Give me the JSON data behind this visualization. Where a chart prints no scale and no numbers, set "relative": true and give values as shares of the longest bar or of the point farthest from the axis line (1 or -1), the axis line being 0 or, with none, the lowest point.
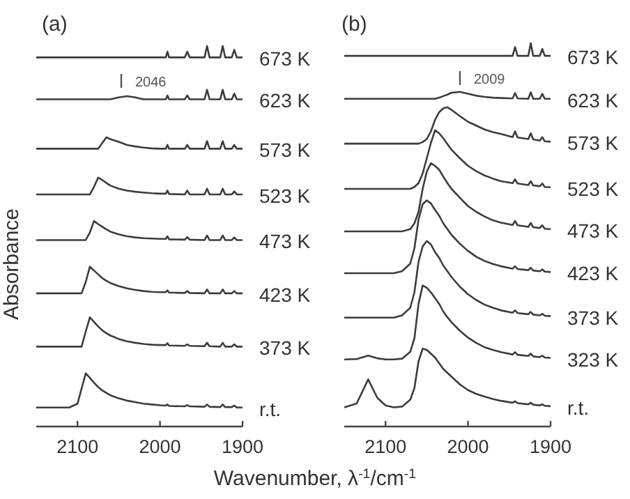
{
  "chart_data": [
    {
      "type": "line",
      "title": "(a)",
      "ylabel": "Absorbance",
      "xlabel": "Wavenumber, λ$^{-1}$/cm$^{-1}$",
      "relative": true,
      "xlim": [
        2150,
        1900
      ],
      "xticks": [
        2100,
        2000,
        1900
      ],
      "tick_labels": "x",
      "annotations": [
        "2046"
      ],
      "x": [
        2150,
        2130,
        2110,
        2100,
        2095,
        2090,
        2085,
        2080,
        2075,
        2070,
        2065,
        2060,
        2050,
        2040,
        2030,
        2020,
        2010,
        2000,
        1993,
        1991,
        1989,
        1970,
        1967,
        1964,
        1946,
        1943,
        1940,
        1927,
        1924,
        1921,
        1913,
        1910,
        1907,
        1900
      ],
      "series": [
        {
          "name": "673 K",
          "color": "#3c3c3c",
          "values": [
            0.97,
            0.97,
            0.97,
            0.97,
            0.97,
            0.97,
            0.97,
            0.97,
            0.97,
            0.97,
            0.97,
            0.97,
            0.97,
            0.97,
            0.97,
            0.97,
            0.97,
            0.97,
            0.97,
            0.985,
            0.97,
            0.97,
            0.985,
            0.97,
            0.97,
            1.0,
            0.97,
            0.97,
            1.0,
            0.97,
            0.97,
            0.99,
            0.97,
            0.97
          ]
        },
        {
          "name": "623 K",
          "color": "#3c3c3c",
          "values": [
            0.86,
            0.86,
            0.86,
            0.86,
            0.86,
            0.86,
            0.86,
            0.86,
            0.86,
            0.86,
            0.86,
            0.86,
            0.865,
            0.868,
            0.865,
            0.86,
            0.86,
            0.86,
            0.86,
            0.87,
            0.86,
            0.86,
            0.87,
            0.86,
            0.86,
            0.885,
            0.86,
            0.86,
            0.885,
            0.86,
            0.86,
            0.875,
            0.86,
            0.86
          ]
        },
        {
          "name": "573 K",
          "color": "#3c3c3c",
          "values": [
            0.73,
            0.73,
            0.73,
            0.73,
            0.73,
            0.73,
            0.73,
            0.73,
            0.73,
            0.745,
            0.76,
            0.755,
            0.748,
            0.74,
            0.736,
            0.733,
            0.731,
            0.73,
            0.73,
            0.74,
            0.73,
            0.73,
            0.74,
            0.73,
            0.73,
            0.75,
            0.73,
            0.73,
            0.75,
            0.73,
            0.73,
            0.74,
            0.73,
            0.73
          ]
        },
        {
          "name": "523 K",
          "color": "#3c3c3c",
          "values": [
            0.61,
            0.61,
            0.61,
            0.61,
            0.61,
            0.61,
            0.61,
            0.63,
            0.654,
            0.648,
            0.64,
            0.633,
            0.625,
            0.62,
            0.617,
            0.615,
            0.613,
            0.612,
            0.612,
            0.62,
            0.611,
            0.61,
            0.62,
            0.61,
            0.61,
            0.625,
            0.61,
            0.61,
            0.625,
            0.61,
            0.61,
            0.618,
            0.61,
            0.61
          ]
        },
        {
          "name": "473 K",
          "color": "#3c3c3c",
          "values": [
            0.49,
            0.49,
            0.49,
            0.49,
            0.49,
            0.49,
            0.51,
            0.54,
            0.532,
            0.525,
            0.518,
            0.512,
            0.505,
            0.5,
            0.497,
            0.495,
            0.494,
            0.493,
            0.493,
            0.5,
            0.492,
            0.491,
            0.498,
            0.491,
            0.49,
            0.502,
            0.49,
            0.49,
            0.502,
            0.49,
            0.49,
            0.497,
            0.49,
            0.49
          ]
        },
        {
          "name": "423 K",
          "color": "#3c3c3c",
          "values": [
            0.35,
            0.35,
            0.35,
            0.35,
            0.35,
            0.38,
            0.42,
            0.41,
            0.4,
            0.39,
            0.383,
            0.377,
            0.369,
            0.363,
            0.359,
            0.356,
            0.354,
            0.353,
            0.353,
            0.358,
            0.352,
            0.351,
            0.356,
            0.351,
            0.35,
            0.36,
            0.35,
            0.35,
            0.36,
            0.35,
            0.35,
            0.356,
            0.35,
            0.35
          ]
        },
        {
          "name": "373 K",
          "color": "#3c3c3c",
          "values": [
            0.21,
            0.21,
            0.21,
            0.21,
            0.21,
            0.25,
            0.287,
            0.275,
            0.263,
            0.253,
            0.245,
            0.239,
            0.23,
            0.224,
            0.22,
            0.217,
            0.215,
            0.214,
            0.214,
            0.219,
            0.213,
            0.212,
            0.216,
            0.212,
            0.211,
            0.22,
            0.211,
            0.21,
            0.22,
            0.21,
            0.21,
            0.216,
            0.21,
            0.21
          ]
        },
        {
          "name": "r.t.",
          "color": "#3c3c3c",
          "values": [
            0.05,
            0.05,
            0.05,
            0.06,
            0.1,
            0.14,
            0.128,
            0.115,
            0.104,
            0.095,
            0.088,
            0.082,
            0.074,
            0.068,
            0.064,
            0.06,
            0.058,
            0.056,
            0.055,
            0.058,
            0.054,
            0.053,
            0.056,
            0.053,
            0.052,
            0.058,
            0.052,
            0.051,
            0.058,
            0.051,
            0.051,
            0.055,
            0.05,
            0.05
          ]
        }
      ]
    },
    {
      "type": "line",
      "title": "(b)",
      "relative": true,
      "xlim": [
        2150,
        1900
      ],
      "xticks": [
        2100,
        2000,
        1900
      ],
      "tick_labels": "x",
      "annotations": [
        "2009"
      ],
      "x": [
        2150,
        2135,
        2121,
        2110,
        2100,
        2090,
        2080,
        2070,
        2065,
        2060,
        2055,
        2050,
        2045,
        2040,
        2035,
        2030,
        2025,
        2020,
        2010,
        2000,
        1990,
        1980,
        1970,
        1960,
        1946,
        1943,
        1940,
        1927,
        1924,
        1921,
        1913,
        1910,
        1907,
        1900
      ],
      "series": [
        {
          "name": "673 K",
          "color": "#3c3c3c",
          "values": [
            0.967,
            0.967,
            0.967,
            0.967,
            0.967,
            0.967,
            0.967,
            0.967,
            0.967,
            0.967,
            0.967,
            0.967,
            0.967,
            0.967,
            0.967,
            0.967,
            0.967,
            0.967,
            0.967,
            0.967,
            0.967,
            0.967,
            0.967,
            0.967,
            0.967,
            0.99,
            0.967,
            0.967,
            1.0,
            0.967,
            0.967,
            0.985,
            0.967,
            0.967
          ]
        },
        {
          "name": "623 K",
          "color": "#3c3c3c",
          "values": [
            0.855,
            0.855,
            0.855,
            0.855,
            0.855,
            0.855,
            0.855,
            0.855,
            0.855,
            0.855,
            0.855,
            0.855,
            0.855,
            0.855,
            0.858,
            0.862,
            0.866,
            0.871,
            0.873,
            0.868,
            0.863,
            0.86,
            0.858,
            0.857,
            0.856,
            0.87,
            0.856,
            0.855,
            0.872,
            0.855,
            0.855,
            0.868,
            0.855,
            0.855
          ]
        },
        {
          "name": "573 K",
          "color": "#3c3c3c",
          "values": [
            0.738,
            0.738,
            0.738,
            0.738,
            0.738,
            0.738,
            0.738,
            0.738,
            0.738,
            0.738,
            0.742,
            0.75,
            0.77,
            0.8,
            0.82,
            0.83,
            0.833,
            0.826,
            0.81,
            0.795,
            0.785,
            0.775,
            0.768,
            0.763,
            0.755,
            0.77,
            0.754,
            0.75,
            0.765,
            0.749,
            0.746,
            0.755,
            0.744,
            0.743
          ]
        },
        {
          "name": "523 K",
          "color": "#3c3c3c",
          "values": [
            0.62,
            0.62,
            0.62,
            0.62,
            0.62,
            0.62,
            0.62,
            0.62,
            0.625,
            0.635,
            0.66,
            0.7,
            0.74,
            0.773,
            0.765,
            0.752,
            0.737,
            0.722,
            0.7,
            0.68,
            0.666,
            0.655,
            0.647,
            0.64,
            0.635,
            0.645,
            0.634,
            0.63,
            0.64,
            0.629,
            0.627,
            0.634,
            0.625,
            0.624
          ]
        },
        {
          "name": "473 K",
          "color": "#3c3c3c",
          "values": [
            0.509,
            0.509,
            0.509,
            0.509,
            0.509,
            0.509,
            0.509,
            0.515,
            0.53,
            0.56,
            0.62,
            0.665,
            0.687,
            0.68,
            0.67,
            0.652,
            0.635,
            0.62,
            0.597,
            0.575,
            0.56,
            0.548,
            0.538,
            0.532,
            0.526,
            0.536,
            0.525,
            0.521,
            0.531,
            0.52,
            0.518,
            0.525,
            0.516,
            0.515
          ]
        },
        {
          "name": "423 K",
          "color": "#3c3c3c",
          "values": [
            0.4,
            0.4,
            0.4,
            0.4,
            0.4,
            0.4,
            0.405,
            0.425,
            0.465,
            0.54,
            0.58,
            0.59,
            0.582,
            0.565,
            0.55,
            0.53,
            0.515,
            0.5,
            0.477,
            0.458,
            0.443,
            0.432,
            0.424,
            0.418,
            0.412,
            0.418,
            0.411,
            0.408,
            0.414,
            0.407,
            0.405,
            0.41,
            0.404,
            0.403
          ]
        },
        {
          "name": "373 K",
          "color": "#3c3c3c",
          "values": [
            0.284,
            0.284,
            0.284,
            0.284,
            0.284,
            0.284,
            0.29,
            0.31,
            0.35,
            0.43,
            0.47,
            0.484,
            0.475,
            0.455,
            0.44,
            0.42,
            0.405,
            0.39,
            0.365,
            0.345,
            0.33,
            0.318,
            0.31,
            0.303,
            0.297,
            0.303,
            0.296,
            0.293,
            0.299,
            0.292,
            0.29,
            0.294,
            0.289,
            0.288
          ]
        },
        {
          "name": "323 K",
          "color": "#3c3c3c",
          "values": [
            0.175,
            0.176,
            0.185,
            0.178,
            0.175,
            0.175,
            0.177,
            0.195,
            0.23,
            0.32,
            0.368,
            0.362,
            0.35,
            0.335,
            0.32,
            0.3,
            0.285,
            0.272,
            0.25,
            0.232,
            0.218,
            0.207,
            0.2,
            0.194,
            0.188,
            0.194,
            0.187,
            0.184,
            0.19,
            0.183,
            0.181,
            0.185,
            0.18,
            0.179
          ]
        },
        {
          "name": "r.t.",
          "color": "#3c3c3c",
          "values": [
            0.05,
            0.06,
            0.123,
            0.075,
            0.055,
            0.05,
            0.052,
            0.07,
            0.1,
            0.17,
            0.203,
            0.2,
            0.19,
            0.18,
            0.165,
            0.15,
            0.14,
            0.13,
            0.11,
            0.095,
            0.085,
            0.078,
            0.072,
            0.067,
            0.062,
            0.066,
            0.061,
            0.058,
            0.062,
            0.057,
            0.055,
            0.058,
            0.054,
            0.053
          ]
        }
      ]
    }
  ]
}
